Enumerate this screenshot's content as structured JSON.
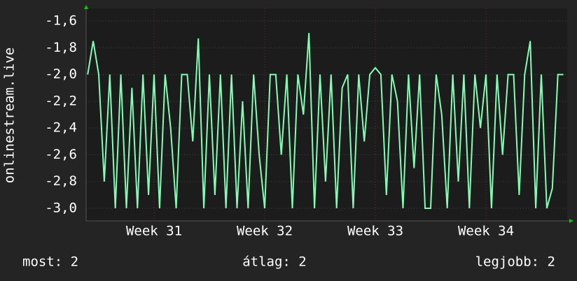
{
  "chart_data": {
    "type": "line",
    "y_label": "onlinestream.live",
    "stats": [
      "most: 2",
      "átlag: 2",
      "legjobb: 2"
    ],
    "xlim": [
      30.386,
      34.734
    ],
    "xticks": [
      {
        "value": 31,
        "label": "Week 31"
      },
      {
        "value": 32,
        "label": "Week 32"
      },
      {
        "value": 33,
        "label": "Week 33"
      },
      {
        "value": 34,
        "label": "Week 34"
      }
    ],
    "ylim": [
      -3.094,
      -1.506
    ],
    "yticks": [
      {
        "value": -3.0,
        "label": "-3,0"
      },
      {
        "value": -2.8,
        "label": "-2,8"
      },
      {
        "value": -2.6,
        "label": "-2,6"
      },
      {
        "value": -2.4,
        "label": "-2,4"
      },
      {
        "value": -2.2,
        "label": "-2,2"
      },
      {
        "value": -2.0,
        "label": "-2,0"
      },
      {
        "value": -1.8,
        "label": "-1,8"
      },
      {
        "value": -1.6,
        "label": "-1,6"
      }
    ],
    "grid": true,
    "series": [
      {
        "color": "#80ffb4",
        "x": [
          30.4,
          30.45,
          30.5,
          30.55,
          30.6,
          30.65,
          30.7,
          30.75,
          30.8,
          30.85,
          30.9,
          30.95,
          31,
          31.05,
          31.1,
          31.15,
          31.2,
          31.25,
          31.3,
          31.35,
          31.4,
          31.45,
          31.5,
          31.55,
          31.6,
          31.65,
          31.7,
          31.75,
          31.8,
          31.85,
          31.9,
          31.95,
          32,
          32.05,
          32.1,
          32.15,
          32.2,
          32.25,
          32.3,
          32.35,
          32.4,
          32.45,
          32.5,
          32.55,
          32.6,
          32.65,
          32.7,
          32.75,
          32.8,
          32.85,
          32.9,
          32.95,
          33,
          33.05,
          33.1,
          33.15,
          33.2,
          33.25,
          33.3,
          33.35,
          33.4,
          33.45,
          33.5,
          33.55,
          33.6,
          33.65,
          33.7,
          33.75,
          33.8,
          33.85,
          33.9,
          33.95,
          34,
          34.05,
          34.1,
          34.15,
          34.2,
          34.25,
          34.3,
          34.35,
          34.4,
          34.45,
          34.5,
          34.55,
          34.6,
          34.65,
          34.7
        ],
        "values": [
          -2.0,
          -1.75,
          -2.0,
          -2.8,
          -2.0,
          -3.0,
          -2.0,
          -3.0,
          -2.1,
          -3.0,
          -2.0,
          -2.9,
          -2.0,
          -3.0,
          -2.0,
          -2.4,
          -3.0,
          -2.0,
          -2.0,
          -2.5,
          -1.73,
          -3.0,
          -2.0,
          -2.9,
          -2.0,
          -3.0,
          -2.0,
          -3.0,
          -2.2,
          -3.0,
          -2.0,
          -2.6,
          -3.0,
          -2.0,
          -2.0,
          -2.6,
          -2.0,
          -3.0,
          -2.0,
          -2.3,
          -1.69,
          -3.0,
          -2.0,
          -2.8,
          -2.0,
          -3.0,
          -2.1,
          -2.0,
          -3.0,
          -2.0,
          -2.5,
          -2.0,
          -1.95,
          -2.0,
          -2.9,
          -2.0,
          -2.2,
          -3.0,
          -2.0,
          -2.7,
          -2.0,
          -3.0,
          -3.0,
          -2.0,
          -2.3,
          -3.0,
          -2.0,
          -2.8,
          -2.0,
          -3.0,
          -2.0,
          -2.4,
          -2.0,
          -3.0,
          -2.0,
          -2.6,
          -2.0,
          -2.0,
          -2.9,
          -2.0,
          -1.75,
          -3.0,
          -2.0,
          -3.0,
          -2.85,
          -2.0,
          -2.0
        ]
      }
    ]
  }
}
